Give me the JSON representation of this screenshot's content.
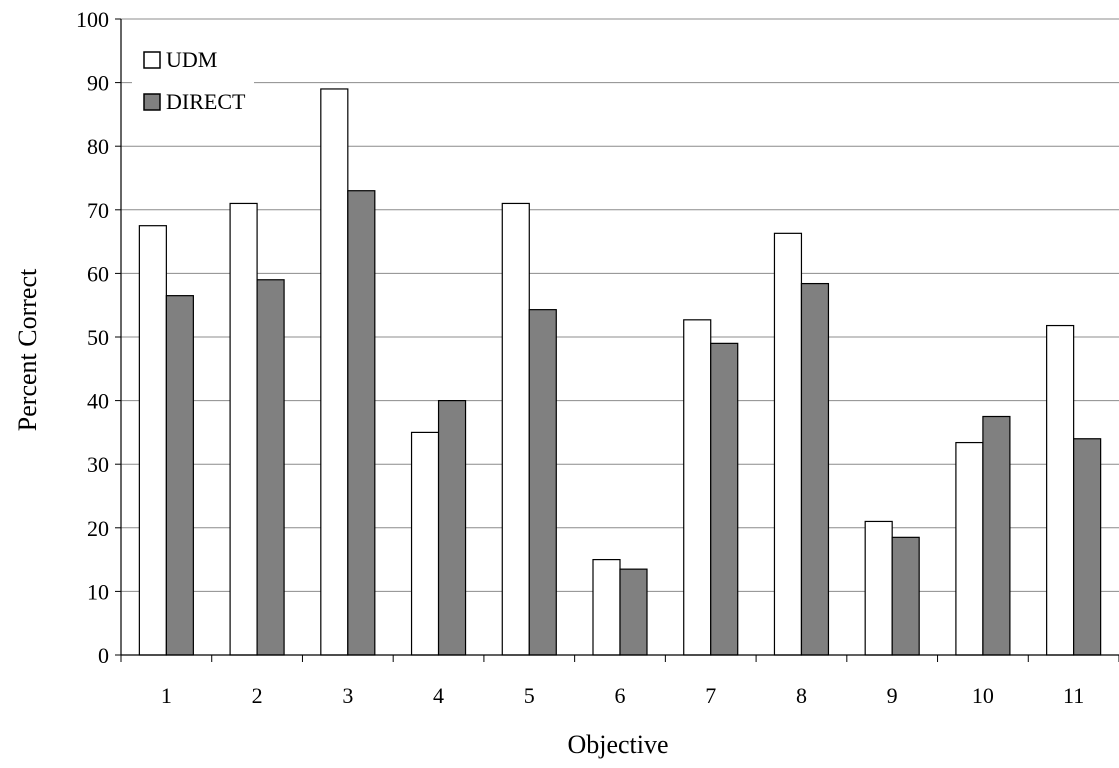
{
  "chart_data": {
    "type": "bar",
    "title": "",
    "xlabel": "Objective",
    "ylabel": "Percent Correct",
    "ylim": [
      0,
      100
    ],
    "yticks": [
      0,
      10,
      20,
      30,
      40,
      50,
      60,
      70,
      80,
      90,
      100
    ],
    "grid": "horizontal",
    "legend_position": "top-left",
    "categories": [
      "1",
      "2",
      "3",
      "4",
      "5",
      "6",
      "7",
      "8",
      "9",
      "10",
      "11"
    ],
    "series": [
      {
        "name": "UDM",
        "color": "#ffffff",
        "values": [
          67.5,
          71,
          89,
          35,
          71,
          15,
          52.7,
          66.3,
          21,
          33.4,
          51.8
        ]
      },
      {
        "name": "DIRECT",
        "color": "#808080",
        "values": [
          56.5,
          59,
          73,
          40,
          54.3,
          13.5,
          49,
          58.4,
          18.5,
          37.5,
          34
        ]
      }
    ]
  }
}
